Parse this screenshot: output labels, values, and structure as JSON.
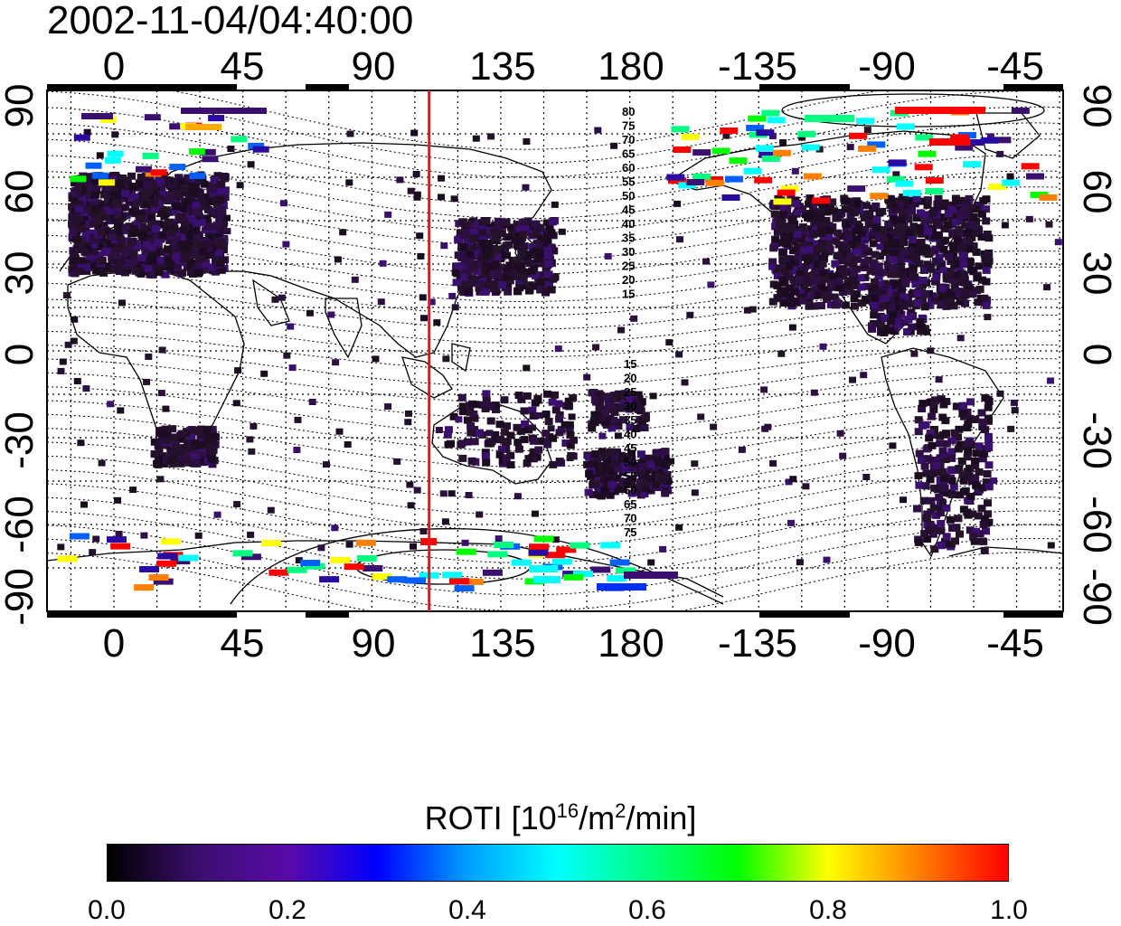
{
  "title": "2002-11-04/04:40:00",
  "top_axis": [
    "0",
    "45",
    "90",
    "135",
    "180",
    "-135",
    "-90",
    "-45"
  ],
  "bottom_axis": [
    "0",
    "45",
    "90",
    "135",
    "180",
    "-135",
    "-90",
    "-45"
  ],
  "left_axis": [
    "90",
    "60",
    "30",
    "0",
    "-30",
    "-60",
    "-90"
  ],
  "right_axis": [
    "90",
    "60",
    "30",
    "0",
    "-30",
    "-60",
    "-90"
  ],
  "contour_labels_north": [
    "80",
    "75",
    "70",
    "65",
    "60",
    "55",
    "50",
    "45",
    "40",
    "35",
    "30",
    "25",
    "20",
    "15"
  ],
  "contour_labels_south": [
    "15",
    "20",
    "25",
    "30",
    "35",
    "40",
    "45",
    "50",
    "55",
    "60",
    "65",
    "70",
    "75"
  ],
  "marker_longitude": 110,
  "colorbar": {
    "label_prefix": "ROTI  [10",
    "label_sup1": "16",
    "label_mid": "/m",
    "label_sup2": "2",
    "label_suffix": "/min]",
    "ticks": [
      "0.0",
      "0.2",
      "0.4",
      "0.6",
      "0.8",
      "1.0"
    ],
    "colors": [
      "#000000",
      "#3a0f6e",
      "#5a0aa8",
      "#0000ff",
      "#00a0ff",
      "#00ffff",
      "#00ff80",
      "#00ff00",
      "#ffff00",
      "#ff8000",
      "#ff0000"
    ]
  },
  "colors": {
    "marker_line": "#e8141e",
    "grid": "#000000",
    "low_roti": "#2a0a3a"
  }
}
